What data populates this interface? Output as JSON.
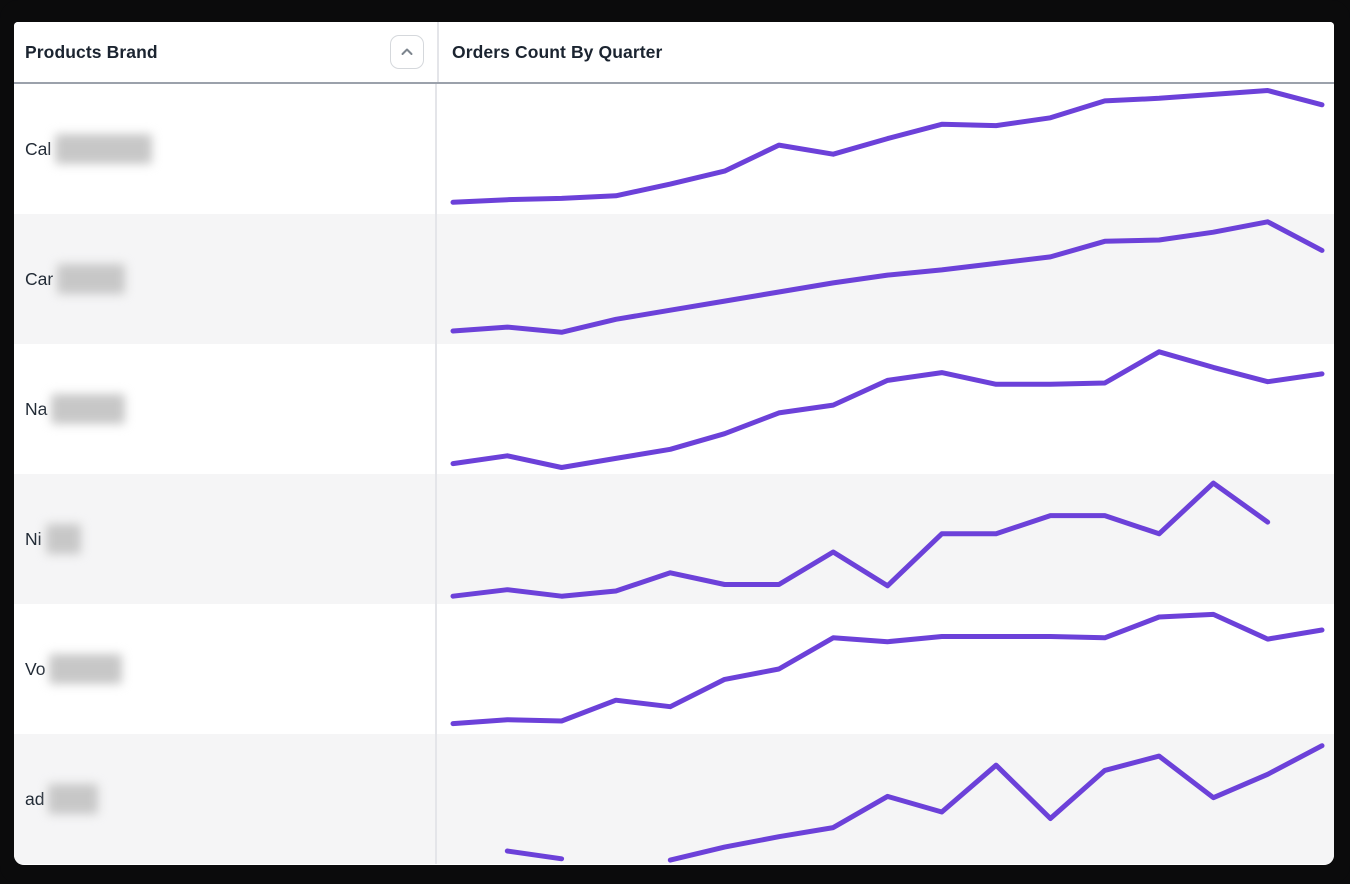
{
  "table": {
    "columns": [
      {
        "label": "Products Brand",
        "sortable": true
      },
      {
        "label": "Orders Count By Quarter",
        "sortable": false
      }
    ],
    "sort_button": {
      "icon": "chevron-up",
      "direction": "ascending"
    },
    "rows": [
      {
        "brand_visible": "Cal",
        "redacted": true,
        "blur_width": 97
      },
      {
        "brand_visible": "Car",
        "redacted": true,
        "blur_width": 68
      },
      {
        "brand_visible": "Na",
        "redacted": true,
        "blur_width": 74
      },
      {
        "brand_visible": "Ni",
        "redacted": true,
        "blur_width": 35
      },
      {
        "brand_visible": "Vo",
        "redacted": true,
        "blur_width": 73
      },
      {
        "brand_visible": "ad",
        "redacted": true,
        "blur_width": 50
      }
    ]
  },
  "colors": {
    "sparkline": "#6c41d9",
    "row_alt_bg": "#f5f5f6",
    "row_bg": "#ffffff",
    "header_border": "#9ba1ab",
    "column_divider": "#e4e5e9",
    "text_dark": "#1b2430",
    "frame_bg": "#0b0b0c"
  },
  "chart_data": {
    "type": "line",
    "title": "Orders Count By Quarter",
    "x": [
      1,
      2,
      3,
      4,
      5,
      6,
      7,
      8,
      9,
      10,
      11,
      12,
      13,
      14,
      15,
      16,
      17
    ],
    "x_axis_visible": false,
    "y_axis_visible": false,
    "grid": false,
    "legend": false,
    "value_scale": "relative 0-100 (no axis labels shown in UI; values estimated from line heights)",
    "series": [
      {
        "name": "Cal (redacted)",
        "values": [
          9,
          11,
          12,
          14,
          23,
          33,
          53,
          46,
          58,
          69,
          68,
          74,
          87,
          89,
          92,
          95,
          84
        ]
      },
      {
        "name": "Car (redacted)",
        "values": [
          10,
          13,
          9,
          19,
          26,
          33,
          40,
          47,
          53,
          57,
          62,
          67,
          79,
          80,
          86,
          94,
          72
        ]
      },
      {
        "name": "Na (redacted)",
        "values": [
          8,
          14,
          5,
          12,
          19,
          31,
          47,
          53,
          72,
          78,
          69,
          69,
          70,
          94,
          82,
          71,
          77
        ]
      },
      {
        "name": "Ni (redacted)",
        "values": [
          6,
          11,
          6,
          10,
          24,
          15,
          15,
          40,
          14,
          54,
          54,
          68,
          68,
          54,
          93,
          63,
          null
        ]
      },
      {
        "name": "Vo (redacted)",
        "values": [
          8,
          11,
          10,
          26,
          21,
          42,
          50,
          74,
          71,
          75,
          75,
          75,
          74,
          90,
          92,
          73,
          80
        ]
      },
      {
        "name": "ad (redacted)",
        "values": [
          null,
          10,
          4,
          null,
          3,
          13,
          21,
          28,
          52,
          40,
          76,
          35,
          72,
          83,
          51,
          69,
          91
        ]
      }
    ]
  }
}
